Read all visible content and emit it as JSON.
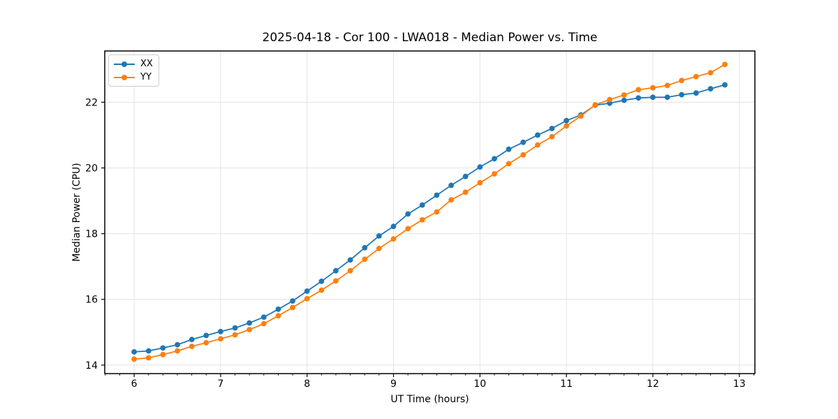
{
  "chart_data": {
    "type": "line",
    "title": "2025-04-18 - Cor 100 - LWA018 - Median Power vs. Time",
    "xlabel": "UT Time (hours)",
    "ylabel": "Median Power (CPU)",
    "xlim": [
      5.66,
      13.18
    ],
    "ylim": [
      13.74,
      23.56
    ],
    "x_major_ticks": [
      6,
      7,
      8,
      9,
      10,
      11,
      12,
      13
    ],
    "y_major_ticks": [
      14,
      16,
      18,
      20,
      22
    ],
    "x_minor_step_hours": 0.1667,
    "grid": true,
    "legend_position": "upper-left",
    "colors": {
      "grid": "#e3e3e3",
      "spine": "#000000",
      "xx": "#1f77b4",
      "yy": "#ff7f0e"
    },
    "x": [
      6.0,
      6.167,
      6.333,
      6.5,
      6.667,
      6.833,
      7.0,
      7.167,
      7.333,
      7.5,
      7.667,
      7.833,
      8.0,
      8.167,
      8.333,
      8.5,
      8.667,
      8.833,
      9.0,
      9.167,
      9.333,
      9.5,
      9.667,
      9.833,
      10.0,
      10.167,
      10.333,
      10.5,
      10.667,
      10.833,
      11.0,
      11.167,
      11.333,
      11.5,
      11.667,
      11.833,
      12.0,
      12.167,
      12.333,
      12.5,
      12.667,
      12.833
    ],
    "series": [
      {
        "name": "XX",
        "color": "#1f77b4",
        "values": [
          14.4,
          14.43,
          14.52,
          14.62,
          14.78,
          14.9,
          15.02,
          15.13,
          15.28,
          15.46,
          15.7,
          15.95,
          16.25,
          16.55,
          16.87,
          17.2,
          17.57,
          17.93,
          18.22,
          18.6,
          18.87,
          19.17,
          19.47,
          19.74,
          20.03,
          20.28,
          20.57,
          20.78,
          21.0,
          21.2,
          21.44,
          21.61,
          21.91,
          21.97,
          22.06,
          22.13,
          22.15,
          22.15,
          22.23,
          22.28,
          22.41,
          22.53
        ]
      },
      {
        "name": "YY",
        "color": "#ff7f0e",
        "values": [
          14.18,
          14.22,
          14.32,
          14.43,
          14.57,
          14.68,
          14.8,
          14.92,
          15.08,
          15.26,
          15.5,
          15.75,
          16.02,
          16.28,
          16.56,
          16.87,
          17.22,
          17.55,
          17.84,
          18.15,
          18.42,
          18.66,
          19.03,
          19.26,
          19.55,
          19.82,
          20.13,
          20.4,
          20.7,
          20.95,
          21.28,
          21.58,
          21.92,
          22.08,
          22.22,
          22.38,
          22.44,
          22.51,
          22.66,
          22.78,
          22.9,
          23.15
        ]
      }
    ]
  }
}
